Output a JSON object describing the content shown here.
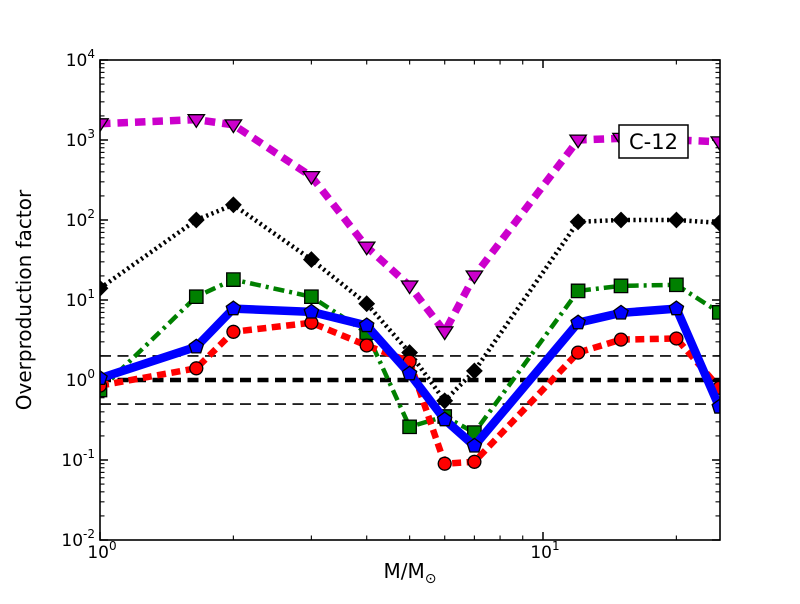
{
  "figure": {
    "background": "#ffffff"
  },
  "labels": {
    "xlabel_main": "M/M",
    "xlabel_sub": "⊙"
  },
  "annotation": {
    "text": "C-12"
  },
  "chart_data": {
    "type": "line",
    "title": "",
    "xlabel": "M/M⊙",
    "ylabel": "Overproduction factor",
    "x_scale": "log",
    "y_scale": "log",
    "xlim": [
      1,
      25.1
    ],
    "ylim": [
      0.01,
      10000
    ],
    "grid": false,
    "legend": "none",
    "x_ticks": [
      {
        "value": 1,
        "exponent": 0
      },
      {
        "value": 10,
        "exponent": 1
      }
    ],
    "y_ticks": [
      {
        "value": 10000,
        "exponent": 4
      },
      {
        "value": 1000,
        "exponent": 3
      },
      {
        "value": 100,
        "exponent": 2
      },
      {
        "value": 10,
        "exponent": 1
      },
      {
        "value": 1,
        "exponent": 0
      },
      {
        "value": 0.1,
        "exponent": -1
      },
      {
        "value": 0.01,
        "exponent": -2
      }
    ],
    "x": [
      1,
      1.65,
      2,
      3,
      4,
      5,
      6,
      7,
      12,
      15,
      20,
      25
    ],
    "series": [
      {
        "name": "magenta-thick-dashed-triangles",
        "color": "#CC00CC",
        "line_style": "dashed-heavy",
        "line_width": 7.5,
        "marker": "triangle-down",
        "values": [
          1600,
          1800,
          1550,
          350,
          46,
          15,
          4,
          20,
          1000,
          1050,
          1000,
          950
        ]
      },
      {
        "name": "black-dotted-diamonds",
        "color": "#000000",
        "line_style": "dotted",
        "line_width": 4.5,
        "marker": "diamond",
        "values": [
          14,
          100,
          155,
          32,
          9,
          2.2,
          0.55,
          1.3,
          95,
          100,
          100,
          92
        ]
      },
      {
        "name": "green-dashdot-squares",
        "color": "#008000",
        "line_style": "dashdot",
        "line_width": 4.5,
        "marker": "square",
        "values": [
          0.75,
          11,
          18,
          11,
          3.9,
          0.26,
          0.35,
          0.22,
          13,
          15,
          15.5,
          7
        ]
      },
      {
        "name": "red-dashed-circles",
        "color": "#FF0000",
        "line_style": "dashed",
        "line_width": 6.5,
        "marker": "circle",
        "values": [
          0.85,
          1.4,
          4.0,
          5.2,
          2.7,
          1.7,
          0.09,
          0.095,
          2.2,
          3.2,
          3.3,
          0.8
        ]
      },
      {
        "name": "blue-solid-pentagons",
        "color": "#0000FF",
        "line_style": "solid",
        "line_width": 8.5,
        "marker": "pentagon",
        "values": [
          1.05,
          2.6,
          7.8,
          7.1,
          4.8,
          1.2,
          0.32,
          0.15,
          5.2,
          6.9,
          7.8,
          0.46
        ]
      }
    ],
    "reference_lines": [
      {
        "y": 2,
        "color": "#000000",
        "style": "thin-dashed"
      },
      {
        "y": 1,
        "color": "#000000",
        "style": "thick-dashed"
      },
      {
        "y": 0.5,
        "color": "#000000",
        "style": "thin-dashed"
      }
    ]
  }
}
